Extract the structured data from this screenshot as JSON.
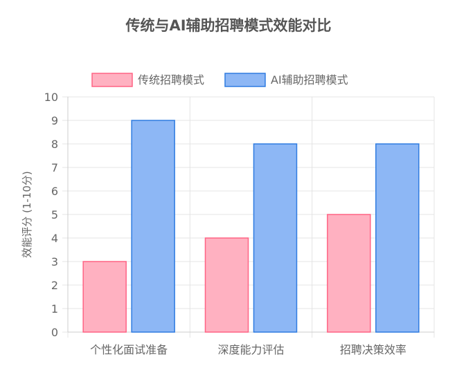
{
  "chart_data": {
    "type": "bar",
    "title": "传统与AI辅助招聘模式效能对比",
    "ylabel": "效能评分 (1-10分)",
    "xlabel": "",
    "categories": [
      "个性化面试准备",
      "深度能力评估",
      "招聘决策效率"
    ],
    "series": [
      {
        "name": "传统招聘模式",
        "values": [
          3,
          4,
          5
        ],
        "color": "#ff6384",
        "fill": "#ffb1c1"
      },
      {
        "name": "AI辅助招聘模式",
        "values": [
          9,
          8,
          8
        ],
        "color": "#2f7be0",
        "fill": "#8db7f5"
      }
    ],
    "ylim": [
      0,
      10
    ],
    "yticks": [
      0,
      1,
      2,
      3,
      4,
      5,
      6,
      7,
      8,
      9,
      10
    ],
    "grid": true,
    "legend_position": "top"
  }
}
